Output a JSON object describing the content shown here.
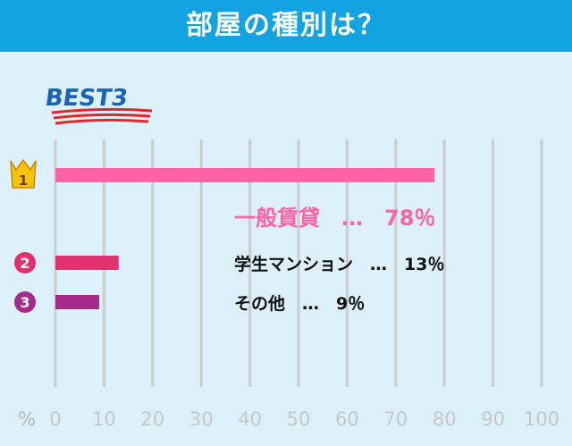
{
  "header": {
    "title": "部屋の種別は？"
  },
  "badge": {
    "text": "BEST3"
  },
  "colors": {
    "header_bg": "#12a3e3",
    "panel_bg": "#dcf0fa",
    "grid": "#cccccc"
  },
  "chart_data": {
    "type": "bar",
    "orientation": "horizontal",
    "title": "部屋の種別は？",
    "categories": [
      "一般賃貸",
      "学生マンション",
      "その他"
    ],
    "values": [
      78,
      13,
      9
    ],
    "labels": [
      "一般賃貸　…　78％",
      "学生マンション　…　13％",
      "その他　…　9％"
    ],
    "rank_labels": [
      "1",
      "2",
      "3"
    ],
    "colors": [
      "#ff63a5",
      "#e0306e",
      "#a52a8c"
    ],
    "x_unit": "%",
    "xlim": [
      0,
      100
    ],
    "x_ticks": [
      0,
      10,
      20,
      30,
      40,
      50,
      60,
      70,
      80,
      90,
      100
    ],
    "grid": true
  }
}
